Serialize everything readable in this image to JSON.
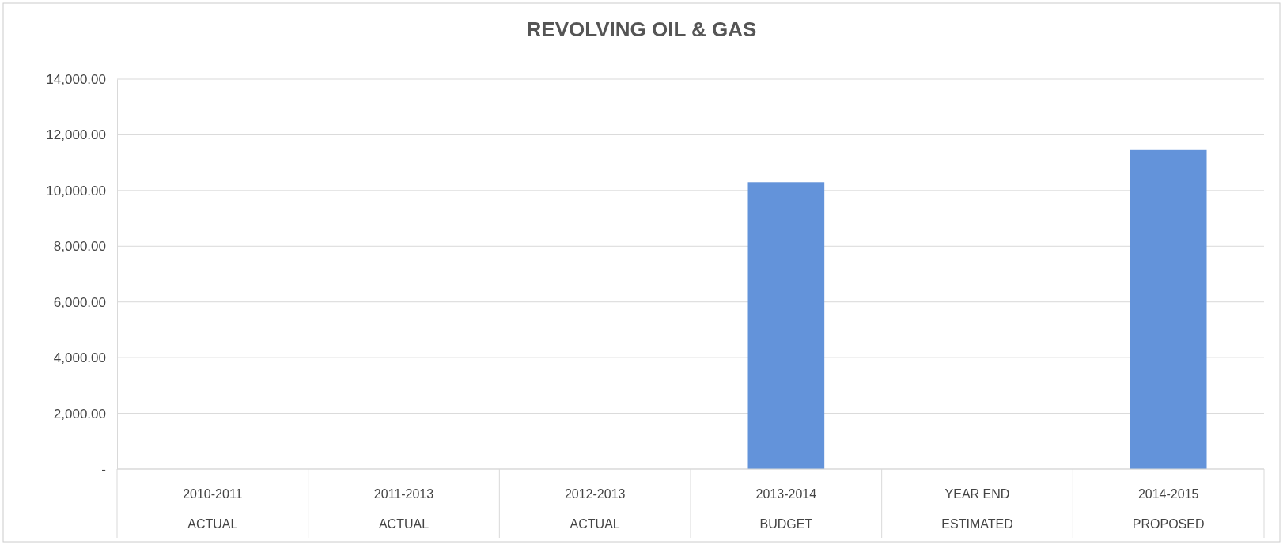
{
  "chart_data": {
    "type": "bar",
    "title": "REVOLVING OIL & GAS",
    "categories": [
      "2010-2011\nACTUAL",
      "2011-2013\nACTUAL",
      "2012-2013\nACTUAL",
      "2013-2014\nBUDGET",
      "YEAR END\nESTIMATED",
      "2014-2015\nPROPOSED"
    ],
    "values": [
      null,
      null,
      null,
      10300,
      null,
      11450
    ],
    "color": "#6393da",
    "ylim": [
      0,
      14000
    ],
    "yticks": [
      {
        "value": 0,
        "label": "-"
      },
      {
        "value": 2000,
        "label": "2,000.00"
      },
      {
        "value": 4000,
        "label": "4,000.00"
      },
      {
        "value": 6000,
        "label": "6,000.00"
      },
      {
        "value": 8000,
        "label": "8,000.00"
      },
      {
        "value": 10000,
        "label": "10,000.00"
      },
      {
        "value": 12000,
        "label": "12,000.00"
      },
      {
        "value": 14000,
        "label": "14,000.00"
      }
    ],
    "grid": "y"
  }
}
